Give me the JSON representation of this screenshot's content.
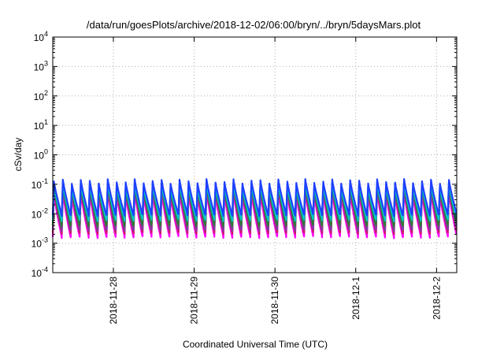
{
  "chart_data": {
    "type": "line",
    "title": "/data/run/goesPlots/archive/2018-12-02/06:00/bryn/../bryn/5daysMars.plot",
    "xlabel": "Coordinated Universal Time (UTC)",
    "ylabel": "cSv/day",
    "yscale": "log",
    "ylim": [
      0.0001,
      10000
    ],
    "y_ticks": [
      {
        "value": 0.0001,
        "base": "10",
        "exp": "-4"
      },
      {
        "value": 0.001,
        "base": "10",
        "exp": "-3"
      },
      {
        "value": 0.01,
        "base": "10",
        "exp": "-2"
      },
      {
        "value": 0.1,
        "base": "10",
        "exp": "-1"
      },
      {
        "value": 1,
        "base": "10",
        "exp": "0"
      },
      {
        "value": 10,
        "base": "10",
        "exp": "1"
      },
      {
        "value": 100,
        "base": "10",
        "exp": "2"
      },
      {
        "value": 1000,
        "base": "10",
        "exp": "3"
      },
      {
        "value": 10000,
        "base": "10",
        "exp": "4"
      }
    ],
    "xlim": [
      "2018-11-27T06:00",
      "2018-12-02T06:00"
    ],
    "x_ticks": [
      {
        "value": "2018-11-28T00:00",
        "label": "2018-11-28"
      },
      {
        "value": "2018-11-29T00:00",
        "label": "2018-11-29"
      },
      {
        "value": "2018-11-30T00:00",
        "label": "2018-11-30"
      },
      {
        "value": "2018-12-01T00:00",
        "label": "2018-12-1"
      },
      {
        "value": "2018-12-02T00:00",
        "label": "2018-12-2"
      }
    ],
    "grid": true,
    "legend": "none",
    "cycle_period_hours": 2.667,
    "series": [
      {
        "color": "#ff00ff",
        "peak": 0.05,
        "trough": 0.0016
      },
      {
        "color": "#cc1a66",
        "peak": 0.07,
        "trough": 0.0022
      },
      {
        "color": "#7a3fa0",
        "peak": 0.08,
        "trough": 0.0028
      },
      {
        "color": "#2e7d32",
        "peak": 0.09,
        "trough": 0.004
      },
      {
        "color": "#00c8c8",
        "peak": 0.1,
        "trough": 0.006
      },
      {
        "color": "#1e40ff",
        "peak": 0.13,
        "trough": 0.009
      }
    ]
  }
}
